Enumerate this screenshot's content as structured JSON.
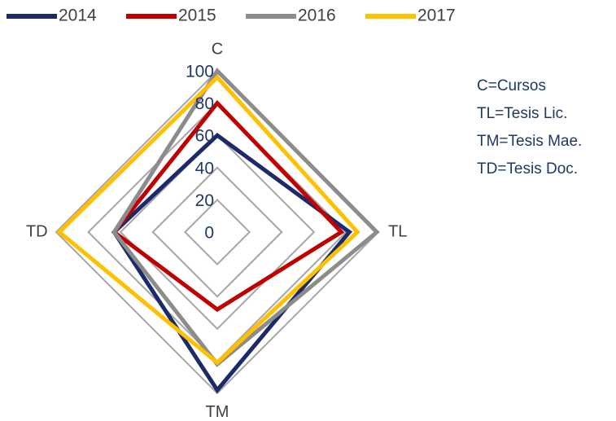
{
  "chart_data": {
    "type": "radar",
    "categories": [
      "C",
      "TL",
      "TM",
      "TD"
    ],
    "series": [
      {
        "name": "2014",
        "color": "#1b2a6b",
        "values": [
          60,
          82,
          98,
          64
        ]
      },
      {
        "name": "2015",
        "color": "#c00000",
        "values": [
          80,
          77,
          48,
          64
        ]
      },
      {
        "name": "2016",
        "color": "#8c8c8c",
        "values": [
          100,
          99,
          82,
          64
        ]
      },
      {
        "name": "2017",
        "color": "#ffc000",
        "values": [
          96,
          87,
          81,
          98
        ]
      }
    ],
    "ylim": [
      0,
      100
    ],
    "yticks": [
      0,
      20,
      40,
      60,
      80,
      100
    ],
    "grid": true,
    "legend": "top",
    "notes": [
      "C=Cursos",
      "TL=Tesis Lic.",
      "TM=Tesis Mae.",
      "TD=Tesis Doc."
    ]
  }
}
